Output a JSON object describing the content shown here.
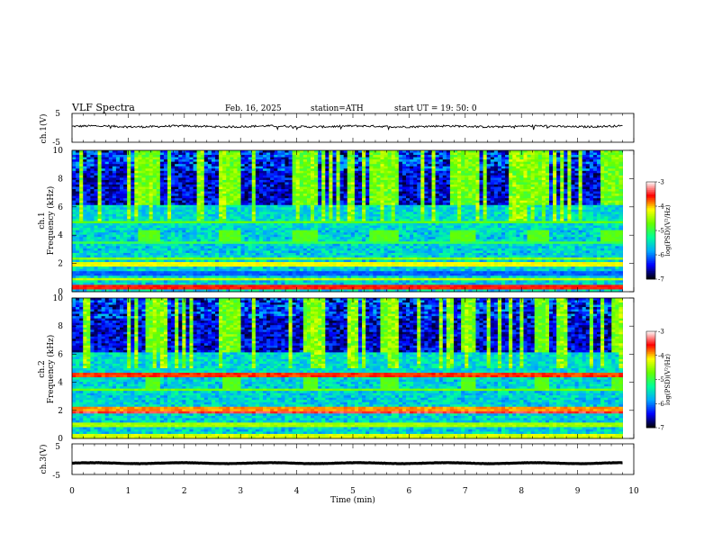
{
  "header": {
    "title": "VLF  Spectra",
    "date": "Feb. 16, 2025",
    "station": "station=ATH",
    "start_ut": "start  UT  =    19: 50: 0"
  },
  "chart_data": [
    {
      "type": "line",
      "name": "ch1-waveform",
      "ylabel": "ch.1(V)",
      "yticks": [
        "5",
        "-5"
      ],
      "ylim": [
        -5,
        5
      ],
      "xlim": [
        0,
        10
      ],
      "trace_level": 0.5,
      "trace_noise": 0.35,
      "color": "#000000"
    },
    {
      "type": "heatmap",
      "name": "ch1-spectrogram",
      "ylabel_line1": "ch.1",
      "ylabel_line2": "Frequency  (kHz)",
      "xlim": [
        0,
        9.8
      ],
      "ylim": [
        0,
        10
      ],
      "yticks": [
        "0",
        "2",
        "4",
        "6",
        "8",
        "10"
      ],
      "colorbar": {
        "label": "log(PSD)(V²/Hz)",
        "range": [
          -7,
          -3
        ],
        "ticks": [
          "-3",
          "-4",
          "-5",
          "-6",
          "-7"
        ],
        "colors": [
          "#000000",
          "#0000ff",
          "#00aaff",
          "#00ff99",
          "#66ff00",
          "#ffff00",
          "#ff0000",
          "#ffffff"
        ]
      },
      "cycle_period_min": 1.38,
      "quiet_intervals_min": [
        [
          0,
          1.2
        ],
        [
          1.6,
          2.6
        ],
        [
          3.0,
          3.9
        ],
        [
          4.4,
          5.3
        ],
        [
          5.8,
          6.7
        ],
        [
          7.2,
          8.1
        ],
        [
          8.5,
          9.4
        ]
      ],
      "bands_khz": [
        {
          "f": 0.35,
          "level": -3.6
        },
        {
          "f": 0.9,
          "level": -4.4
        },
        {
          "f": 1.3,
          "level": -6.1
        },
        {
          "f": 1.9,
          "level": -4.2
        },
        {
          "f": 2.3,
          "level": -4.6
        },
        {
          "f": 3.5,
          "level": -5.0
        },
        {
          "f": 4.9,
          "level": -4.8
        }
      ]
    },
    {
      "type": "heatmap",
      "name": "ch2-spectrogram",
      "ylabel_line1": "ch.2",
      "ylabel_line2": "Frequency  (kHz)",
      "xlim": [
        0,
        9.8
      ],
      "ylim": [
        0,
        10
      ],
      "yticks": [
        "0",
        "2",
        "4",
        "6",
        "8",
        "10"
      ],
      "colorbar": {
        "label": "log(PSD)(V²/Hz)",
        "range": [
          -7,
          -3
        ],
        "ticks": [
          "-3",
          "-4",
          "-5",
          "-6",
          "-7"
        ],
        "colors": [
          "#000000",
          "#0000ff",
          "#00aaff",
          "#00ff99",
          "#66ff00",
          "#ffff00",
          "#ff0000",
          "#ffffff"
        ]
      },
      "cycle_period_min": 1.38,
      "quiet_intervals_min": [
        [
          0,
          1.3
        ],
        [
          1.6,
          2.7
        ],
        [
          3.0,
          4.1
        ],
        [
          4.4,
          5.5
        ],
        [
          5.8,
          6.9
        ],
        [
          7.2,
          8.2
        ],
        [
          8.5,
          9.6
        ]
      ],
      "bands_khz": [
        {
          "f": 0.2,
          "level": -4.3
        },
        {
          "f": 1.0,
          "level": -4.5
        },
        {
          "f": 1.9,
          "level": -3.4
        },
        {
          "f": 2.1,
          "level": -3.9
        },
        {
          "f": 3.5,
          "level": -4.7
        },
        {
          "f": 4.5,
          "level": -3.7
        }
      ]
    },
    {
      "type": "line",
      "name": "ch3-waveform",
      "ylabel": "ch.3(V)",
      "yticks": [
        "5",
        "-5"
      ],
      "ylim": [
        -5,
        5
      ],
      "xlim": [
        0,
        10
      ],
      "trace_level": -1.3,
      "trace_noise": 0.05,
      "color": "#000000"
    }
  ],
  "time_axis": {
    "xlabel": "Time  (min)",
    "xlim": [
      0,
      10
    ],
    "ticks": [
      "0",
      "1",
      "2",
      "3",
      "4",
      "5",
      "6",
      "7",
      "8",
      "9",
      "10"
    ]
  }
}
